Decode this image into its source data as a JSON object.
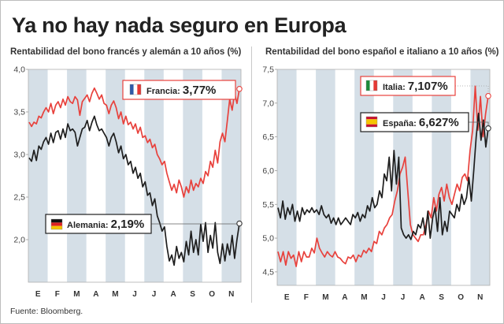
{
  "headline": "Ya no hay nada seguro en Europa",
  "source": "Fuente: Bloomberg.",
  "chart_data": [
    {
      "type": "line",
      "title": "Rentabilidad del bono francés y alemán a 10 años (%)",
      "x_ticks": [
        "E",
        "F",
        "M",
        "A",
        "M",
        "J",
        "J",
        "A",
        "S",
        "O",
        "N"
      ],
      "ylim": [
        1.5,
        4.0
      ],
      "y_ticks": [
        "4,0",
        "3,5",
        "3,0",
        "2,5",
        "2,0"
      ],
      "y_tick_values": [
        4.0,
        3.5,
        3.0,
        2.5,
        2.0
      ],
      "grid": "alternating vertical month bands",
      "series": [
        {
          "name": "Francia",
          "label": "3,77%",
          "color": "#e8413c",
          "flag": "france-flag",
          "values": [
            3.38,
            3.33,
            3.38,
            3.36,
            3.45,
            3.43,
            3.5,
            3.55,
            3.5,
            3.6,
            3.48,
            3.58,
            3.62,
            3.55,
            3.65,
            3.58,
            3.68,
            3.62,
            3.6,
            3.68,
            3.64,
            3.46,
            3.62,
            3.66,
            3.7,
            3.62,
            3.72,
            3.78,
            3.72,
            3.65,
            3.7,
            3.6,
            3.58,
            3.48,
            3.58,
            3.63,
            3.55,
            3.42,
            3.5,
            3.36,
            3.45,
            3.35,
            3.38,
            3.3,
            3.36,
            3.25,
            3.32,
            3.2,
            3.22,
            3.14,
            3.18,
            3.08,
            3.12,
            3.0,
            2.95,
            2.88,
            2.92,
            2.78,
            2.68,
            2.58,
            2.65,
            2.55,
            2.7,
            2.62,
            2.5,
            2.62,
            2.55,
            2.7,
            2.58,
            2.66,
            2.62,
            2.72,
            2.66,
            2.8,
            2.75,
            2.92,
            2.85,
            3.05,
            2.9,
            3.15,
            3.25,
            3.15,
            3.4,
            3.65,
            3.52,
            3.72,
            3.6,
            3.77
          ]
        },
        {
          "name": "Alemania",
          "label": "2,19%",
          "color": "#1e1e1e",
          "flag": "germany-flag",
          "values": [
            2.96,
            2.92,
            3.05,
            2.93,
            3.1,
            3.06,
            3.15,
            3.2,
            3.12,
            3.25,
            3.14,
            3.26,
            3.28,
            3.18,
            3.3,
            3.2,
            3.36,
            3.28,
            3.3,
            3.26,
            3.1,
            3.2,
            3.3,
            3.32,
            3.4,
            3.28,
            3.38,
            3.45,
            3.35,
            3.28,
            3.3,
            3.25,
            3.2,
            3.1,
            3.2,
            3.25,
            3.15,
            3.02,
            3.1,
            2.95,
            3.0,
            2.88,
            2.92,
            2.78,
            2.85,
            2.72,
            2.78,
            2.62,
            2.68,
            2.52,
            2.55,
            2.4,
            2.48,
            2.28,
            2.2,
            2.1,
            2.15,
            1.92,
            1.75,
            1.82,
            1.7,
            1.92,
            1.78,
            1.85,
            1.74,
            1.98,
            1.82,
            2.1,
            1.85,
            2.0,
            1.82,
            2.18,
            1.98,
            2.2,
            1.85,
            2.05,
            1.9,
            2.2,
            1.85,
            1.72,
            1.95,
            1.75,
            1.95,
            1.82,
            2.05,
            1.78,
            2.0,
            2.19
          ]
        }
      ]
    },
    {
      "type": "line",
      "title": "Rentabilidad del bono español e italiano a 10 años (%)",
      "x_ticks": [
        "E",
        "F",
        "M",
        "A",
        "M",
        "J",
        "J",
        "A",
        "S",
        "O",
        "N"
      ],
      "ylim": [
        4.3,
        7.5
      ],
      "y_ticks": [
        "7,5",
        "7,0",
        "6,5",
        "6,0",
        "5,5",
        "5,0",
        "4,5"
      ],
      "y_tick_values": [
        7.5,
        7.0,
        6.5,
        6.0,
        5.5,
        5.0,
        4.5
      ],
      "grid": "alternating vertical month bands",
      "series": [
        {
          "name": "Italia",
          "label": "7,107%",
          "color": "#e8413c",
          "flag": "italy-flag",
          "values": [
            4.8,
            4.65,
            4.8,
            4.6,
            4.8,
            4.7,
            4.75,
            4.58,
            4.8,
            4.65,
            4.8,
            4.72,
            4.72,
            4.85,
            4.78,
            5.0,
            4.85,
            4.78,
            4.72,
            4.8,
            4.75,
            4.72,
            4.8,
            4.72,
            4.7,
            4.65,
            4.62,
            4.72,
            4.7,
            4.75,
            4.65,
            4.75,
            4.72,
            4.82,
            4.78,
            4.85,
            4.8,
            4.95,
            4.92,
            5.1,
            5.05,
            5.15,
            5.2,
            5.3,
            5.35,
            5.55,
            5.7,
            5.95,
            6.05,
            6.2,
            5.7,
            5.2,
            5.05,
            5.0,
            4.95,
            5.05,
            5.05,
            5.2,
            5.4,
            5.3,
            5.6,
            5.4,
            5.65,
            5.75,
            5.55,
            5.8,
            5.6,
            5.5,
            5.65,
            5.8,
            5.7,
            5.9,
            5.95,
            5.85,
            6.3,
            6.6,
            7.25,
            6.6,
            7.1,
            6.5,
            6.85,
            7.107
          ]
        },
        {
          "name": "España",
          "label": "6,627%",
          "color": "#1e1e1e",
          "flag": "spain-flag",
          "values": [
            5.45,
            5.3,
            5.55,
            5.28,
            5.45,
            5.35,
            5.5,
            5.25,
            5.4,
            5.25,
            5.45,
            5.35,
            5.42,
            5.38,
            5.45,
            5.38,
            5.42,
            5.35,
            5.48,
            5.35,
            5.3,
            5.35,
            5.22,
            5.3,
            5.2,
            5.3,
            5.2,
            5.25,
            5.3,
            5.25,
            5.2,
            5.35,
            5.3,
            5.38,
            5.25,
            5.35,
            5.3,
            5.48,
            5.4,
            5.6,
            5.45,
            5.5,
            5.7,
            5.6,
            5.95,
            5.85,
            6.2,
            5.7,
            6.3,
            5.8,
            6.2,
            5.15,
            5.05,
            5.0,
            5.05,
            4.98,
            5.1,
            5.05,
            5.2,
            5.15,
            5.3,
            5.05,
            5.4,
            5.0,
            5.3,
            5.45,
            5.1,
            5.6,
            5.05,
            5.25,
            5.1,
            5.4,
            5.35,
            5.3,
            5.5,
            5.4,
            5.65,
            5.5,
            5.6,
            5.9,
            5.55,
            6.0,
            6.5,
            6.85,
            6.45,
            6.75,
            6.35,
            6.627
          ]
        }
      ]
    }
  ]
}
